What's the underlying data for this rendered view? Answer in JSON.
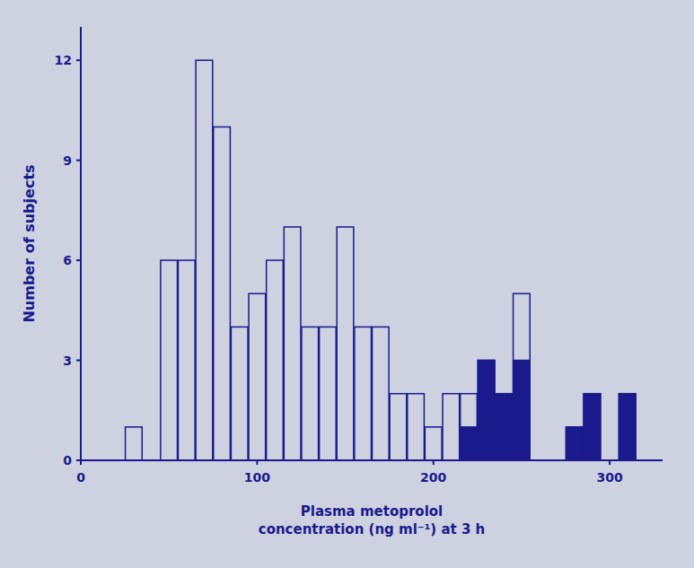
{
  "chart_data": {
    "type": "bar",
    "xlabel": "Plasma metoprolol\nconcentration (ng ml⁻¹) at 3 h",
    "ylabel": "Number of subjects",
    "x": [
      30,
      50,
      60,
      70,
      80,
      90,
      100,
      110,
      120,
      130,
      140,
      150,
      160,
      170,
      180,
      190,
      200,
      210,
      220,
      230,
      240,
      250,
      280,
      290,
      310
    ],
    "series": [
      {
        "color": "#cdd1e0",
        "values": [
          1,
          6,
          6,
          12,
          10,
          4,
          5,
          6,
          7,
          4,
          4,
          7,
          4,
          4,
          2,
          2,
          1,
          2,
          2,
          3,
          2,
          5,
          1,
          2,
          2
        ]
      },
      {
        "color": "#1a1a8c",
        "values": [
          0,
          0,
          0,
          0,
          0,
          0,
          0,
          0,
          0,
          0,
          0,
          0,
          0,
          0,
          0,
          0,
          0,
          0,
          1,
          3,
          2,
          3,
          1,
          2,
          2
        ]
      }
    ],
    "xlim": [
      0,
      330
    ],
    "xticks": [
      0,
      100,
      200,
      300
    ],
    "ylim": [
      0,
      13
    ],
    "yticks": [
      0,
      3,
      6,
      9,
      12
    ],
    "grid": false
  }
}
